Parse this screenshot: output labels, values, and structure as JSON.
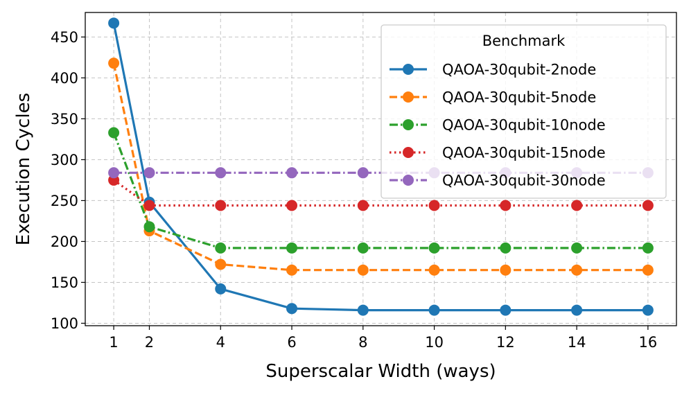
{
  "chart_data": {
    "type": "line",
    "title": "",
    "xlabel": "Superscalar Width (ways)",
    "ylabel": "Execution Cycles",
    "x": [
      1,
      2,
      4,
      6,
      8,
      10,
      12,
      14,
      16
    ],
    "xticks": [
      "1",
      "2",
      "4",
      "6",
      "8",
      "10",
      "12",
      "14",
      "16"
    ],
    "yticks": [
      "100",
      "150",
      "200",
      "250",
      "300",
      "350",
      "400",
      "450"
    ],
    "xlim": [
      0.2,
      16.8
    ],
    "ylim": [
      97,
      480
    ],
    "grid": true,
    "legend": {
      "title": "Benchmark",
      "placement": "top-right"
    },
    "series": [
      {
        "name": "QAOA-30qubit-2node",
        "color": "#1f77b4",
        "linestyle": "solid",
        "values": [
          467,
          248,
          142,
          118,
          116,
          116,
          116,
          116,
          116
        ]
      },
      {
        "name": "QAOA-30qubit-5node",
        "color": "#ff7f0e",
        "linestyle": "dashed",
        "values": [
          418,
          213,
          172,
          165,
          165,
          165,
          165,
          165,
          165
        ]
      },
      {
        "name": "QAOA-30qubit-10node",
        "color": "#2ca02c",
        "linestyle": "dashdot",
        "values": [
          333,
          218,
          192,
          192,
          192,
          192,
          192,
          192,
          192
        ]
      },
      {
        "name": "QAOA-30qubit-15node",
        "color": "#d62728",
        "linestyle": "dotted",
        "values": [
          275,
          244,
          244,
          244,
          244,
          244,
          244,
          244,
          244
        ]
      },
      {
        "name": "QAOA-30qubit-30node",
        "color": "#9467bd",
        "linestyle": "dashdot",
        "values": [
          284,
          284,
          284,
          284,
          284,
          284,
          284,
          284,
          284
        ]
      }
    ]
  }
}
